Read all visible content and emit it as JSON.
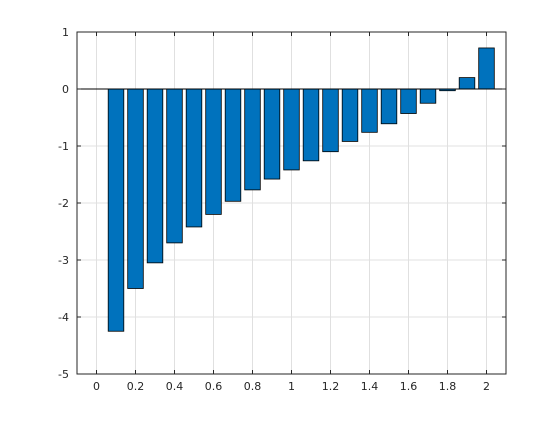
{
  "chart_data": {
    "type": "bar",
    "title": "",
    "xlabel": "",
    "ylabel": "",
    "x": [
      0.1,
      0.2,
      0.3,
      0.4,
      0.5,
      0.6,
      0.7,
      0.8,
      0.9,
      1.0,
      1.1,
      1.2,
      1.3,
      1.4,
      1.5,
      1.6,
      1.7,
      1.8,
      1.9,
      2.0
    ],
    "values": [
      -4.25,
      -3.5,
      -3.05,
      -2.7,
      -2.42,
      -2.2,
      -1.97,
      -1.77,
      -1.58,
      -1.42,
      -1.26,
      -1.1,
      -0.92,
      -0.76,
      -0.61,
      -0.43,
      -0.25,
      -0.03,
      0.2,
      0.72
    ],
    "xlim": [
      -0.1,
      2.1
    ],
    "ylim": [
      -5,
      1
    ],
    "x_ticks": [
      0,
      0.2,
      0.4,
      0.6,
      0.8,
      1,
      1.2,
      1.4,
      1.6,
      1.8,
      2
    ],
    "x_tick_labels": [
      "0",
      "0.2",
      "0.4",
      "0.6",
      "0.8",
      "1",
      "1.2",
      "1.4",
      "1.6",
      "1.8",
      "2"
    ],
    "y_ticks": [
      -5,
      -4,
      -3,
      -2,
      -1,
      0,
      1
    ],
    "y_tick_labels": [
      "-5",
      "-4",
      "-3",
      "-2",
      "-1",
      "0",
      "1"
    ],
    "bar_width": 0.08,
    "grid": true,
    "colors": {
      "bar_fill": "#0072bd",
      "bar_edge": "#000000",
      "grid": "#e0e0e0",
      "axis": "#262626",
      "baseline": "#000000"
    }
  }
}
